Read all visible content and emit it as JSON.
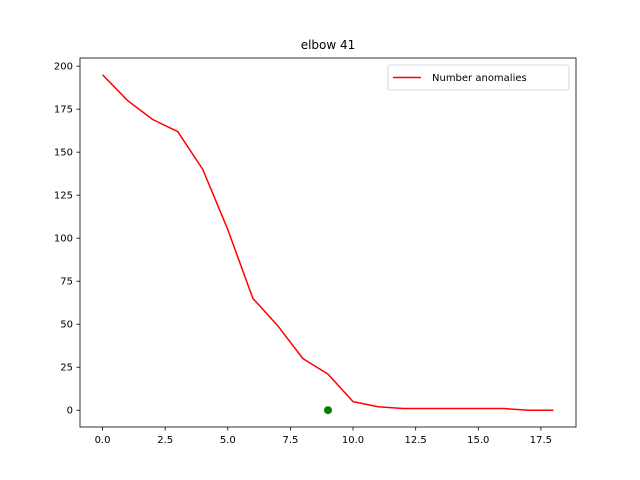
{
  "chart_data": {
    "type": "line",
    "title": "elbow 41",
    "xlabel": "",
    "ylabel": "",
    "xlim": [
      -0.9,
      18.9
    ],
    "ylim": [
      -9.75,
      204.75
    ],
    "xticks": [
      0.0,
      2.5,
      5.0,
      7.5,
      10.0,
      12.5,
      15.0,
      17.5
    ],
    "xtick_labels": [
      "0.0",
      "2.5",
      "5.0",
      "7.5",
      "10.0",
      "12.5",
      "15.0",
      "17.5"
    ],
    "yticks": [
      0,
      25,
      50,
      75,
      100,
      125,
      150,
      175,
      200
    ],
    "ytick_labels": [
      "0",
      "25",
      "50",
      "75",
      "100",
      "125",
      "150",
      "175",
      "200"
    ],
    "grid": false,
    "legend_position": "top-right",
    "series": [
      {
        "name": "Number anomalies",
        "color": "#ff0000",
        "x": [
          0,
          1,
          2,
          3,
          4,
          5,
          6,
          7,
          8,
          9,
          10,
          11,
          12,
          13,
          14,
          15,
          16,
          17,
          18
        ],
        "y": [
          195,
          180,
          169,
          162,
          140,
          105,
          65,
          49,
          30,
          21,
          5,
          2,
          1,
          1,
          1,
          1,
          1,
          0,
          0
        ]
      }
    ],
    "markers": [
      {
        "x": 9,
        "y": 0,
        "color": "#008000"
      }
    ]
  }
}
